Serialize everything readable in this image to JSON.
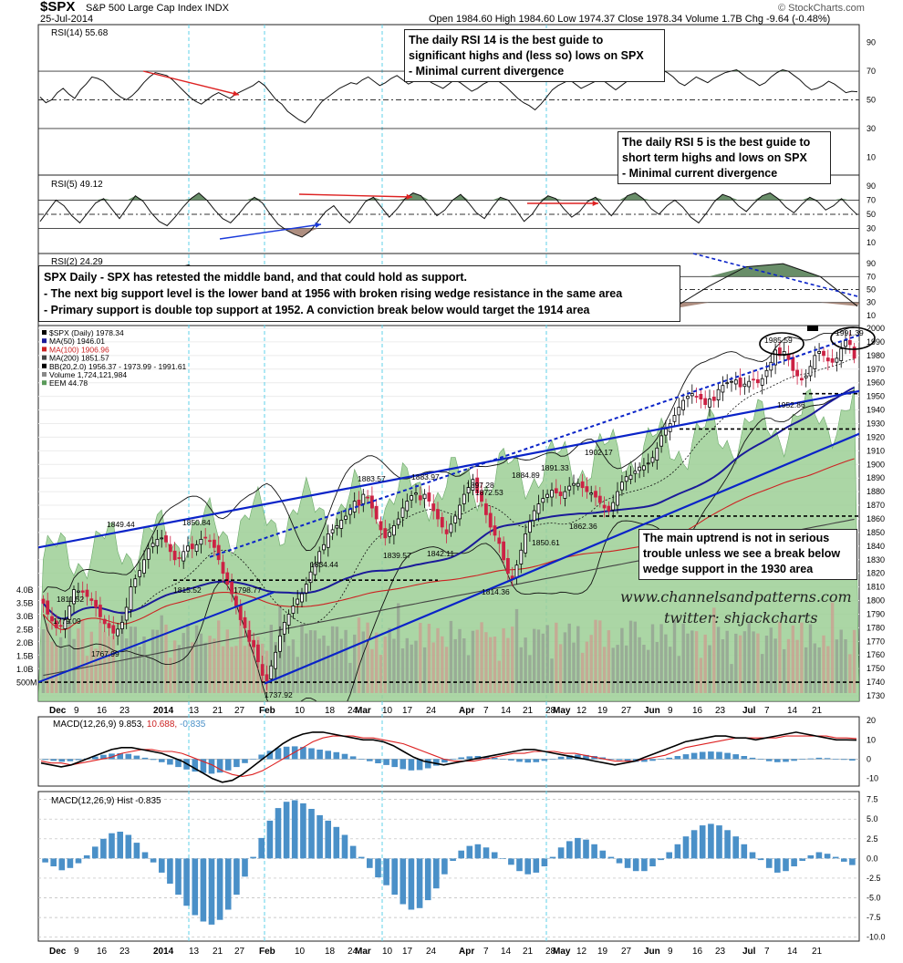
{
  "header": {
    "symbol": "$SPX",
    "name": "S&P 500 Large Cap Index INDX",
    "date": "25-Jul-2014",
    "quote": "Open 1984.60  High 1984.60  Low 1974.37  Close 1978.34  Volume 1.7B  Chg -9.64 (-0.48%)",
    "brand": "© StockCharts.com"
  },
  "notes": {
    "rsi14": [
      "The daily RSI 14 is the best guide to",
      "significant highs and (less so) lows on SPX",
      "- Minimal current  divergence"
    ],
    "rsi5": [
      "The daily RSI 5 is the best guide to",
      "short term highs and lows on SPX",
      "- Minimal current divergence"
    ],
    "main": [
      "SPX Daily - SPX has retested the middle band, and that could hold as support.",
      "- The next big support level is the lower band at 1956 with broken rising wedge resistance in the same area",
      "- Primary support is double top support at 1952. A conviction break below would target the 1914 area"
    ],
    "uptrend": [
      "The main uptrend is not in serious",
      "trouble unless we see a break below",
      "wedge support in the 1930 area"
    ]
  },
  "watermark": {
    "site": "www.channelsandpatterns.com",
    "twitter": "twitter: shjackcharts"
  },
  "legend": {
    "main": [
      "$SPX (Daily) 1978.34",
      "MA(50) 1946.01",
      "MA(100) 1906.96",
      "MA(200) 1851.57",
      "BB(20,2.0) 1956.37 - 1973.99 - 1991.61",
      "Volume 1,724,121,984",
      "EEM 44.78"
    ],
    "rsi14": "RSI(14) 55.68",
    "rsi5": "RSI(5) 49.12",
    "rsi2": "RSI(2) 24.29",
    "macd_name": "MACD(12,26,9)",
    "macd_values": [
      "9.853",
      "10.688",
      "-0.835"
    ],
    "hist": "MACD(12,26,9) Hist -0.835"
  },
  "colors": {
    "up_candle": "#000000",
    "down_candle": "#cc2244",
    "ma50": "#1a1a99",
    "ma100": "#cc2222",
    "ma200": "#444444",
    "eem_fill": "#9ccf95",
    "trendline": "#0a23c8",
    "macd_hist": "#4a90c8",
    "rsi_fill": "#4f7a4f",
    "signal_line": "#dd2222"
  },
  "chart_data": [
    {
      "type": "candlestick",
      "title": "$SPX (Daily)",
      "x_tick_labels": [
        "Dec",
        "9",
        "16",
        "23",
        "2014",
        "13",
        "21",
        "27",
        "Feb",
        "10",
        "18",
        "24",
        "Mar",
        "10",
        "17",
        "24",
        "Apr",
        "7",
        "14",
        "21",
        "28",
        "May",
        "12",
        "19",
        "27",
        "Jun",
        "9",
        "16",
        "23",
        "Jul",
        "7",
        "14",
        "21"
      ],
      "y_tick_labels": [
        "2000",
        "1990",
        "1980",
        "1970",
        "1960",
        "1950",
        "1940",
        "1930",
        "1920",
        "1910",
        "1900",
        "1890",
        "1880",
        "1870",
        "1860",
        "1850",
        "1840",
        "1830",
        "1820",
        "1810",
        "1800",
        "1790",
        "1780",
        "1770",
        "1760",
        "1750",
        "1740",
        "1730"
      ],
      "volume_axis_labels": [
        "4.0B",
        "3.5B",
        "3.0B",
        "2.5B",
        "2.0B",
        "1.5B",
        "1.0B",
        "500M"
      ],
      "ylim": [
        1726,
        2002
      ],
      "close": [
        1798,
        1790,
        1785,
        1780,
        1781,
        1786,
        1796,
        1808,
        1807,
        1806,
        1803,
        1800,
        1795,
        1788,
        1783,
        1780,
        1776,
        1779,
        1784,
        1795,
        1810,
        1816,
        1822,
        1830,
        1838,
        1842,
        1845,
        1846,
        1843,
        1836,
        1830,
        1831,
        1836,
        1840,
        1838,
        1841,
        1845,
        1846,
        1844,
        1839,
        1830,
        1820,
        1812,
        1805,
        1796,
        1786,
        1780,
        1770,
        1766,
        1755,
        1745,
        1741,
        1752,
        1762,
        1774,
        1784,
        1790,
        1796,
        1801,
        1805,
        1812,
        1821,
        1827,
        1836,
        1841,
        1849,
        1852,
        1855,
        1859,
        1862,
        1867,
        1873,
        1870,
        1878,
        1876,
        1868,
        1860,
        1852,
        1846,
        1850,
        1855,
        1860,
        1868,
        1873,
        1877,
        1879,
        1874,
        1878,
        1873,
        1866,
        1860,
        1854,
        1849,
        1856,
        1862,
        1870,
        1878,
        1883,
        1889,
        1879,
        1873,
        1863,
        1854,
        1848,
        1842,
        1830,
        1820,
        1816,
        1826,
        1837,
        1849,
        1858,
        1866,
        1871,
        1875,
        1878,
        1881,
        1879,
        1877,
        1880,
        1884,
        1886,
        1886,
        1883,
        1880,
        1879,
        1876,
        1872,
        1868,
        1866,
        1872,
        1880,
        1887,
        1891,
        1892,
        1895,
        1898,
        1899,
        1901,
        1905,
        1912,
        1921,
        1926,
        1930,
        1936,
        1942,
        1947,
        1950,
        1952,
        1950,
        1948,
        1944,
        1948,
        1947,
        1955,
        1958,
        1960,
        1961,
        1962,
        1957,
        1959,
        1961,
        1962,
        1960,
        1963,
        1969,
        1975,
        1984,
        1980,
        1983,
        1977,
        1969,
        1965,
        1962,
        1965,
        1972,
        1980,
        1983,
        1980,
        1976,
        1975,
        1978,
        1985,
        1991,
        1988,
        1978
      ],
      "moving_averages": {
        "MA50": 1946.01,
        "MA100": 1906.96,
        "MA200": 1851.57,
        "BB_lower": 1956.37,
        "BB_mid": 1973.99,
        "BB_upper": 1991.61
      },
      "annotated_values": [
        {
          "label": "1811.52"
        },
        {
          "label": "1779.09"
        },
        {
          "label": "1767.99"
        },
        {
          "label": "1849.44"
        },
        {
          "label": "1850.84"
        },
        {
          "label": "1815.52"
        },
        {
          "label": "1798.77"
        },
        {
          "label": "1737.92"
        },
        {
          "label": "1883.57"
        },
        {
          "label": "1834.44"
        },
        {
          "label": "1883.97"
        },
        {
          "label": "1839.57"
        },
        {
          "label": "1842.11"
        },
        {
          "label": "1897.28"
        },
        {
          "label": "1872.53"
        },
        {
          "label": "1884.89"
        },
        {
          "label": "1814.36"
        },
        {
          "label": "1850.61"
        },
        {
          "label": "1891.33"
        },
        {
          "label": "1902.17"
        },
        {
          "label": "1862.36"
        },
        {
          "label": "1985.59"
        },
        {
          "label": "1991.39"
        },
        {
          "label": "1952.86"
        }
      ],
      "support_levels": [
        1952,
        1926,
        1862,
        1815,
        1740
      ]
    },
    {
      "type": "line",
      "name": "RSI(14)",
      "value": 55.68,
      "y_tick_labels": [
        "90",
        "70",
        "50",
        "30",
        "10"
      ],
      "ylim": [
        0,
        100
      ],
      "values": [
        52,
        48,
        50,
        55,
        58,
        54,
        51,
        57,
        61,
        66,
        65,
        63,
        59,
        55,
        52,
        50,
        53,
        57,
        62,
        66,
        69,
        68,
        67,
        64,
        60,
        56,
        52,
        49,
        47,
        50,
        53,
        55,
        53,
        51,
        54,
        56,
        58,
        60,
        63,
        60,
        55,
        50,
        47,
        42,
        39,
        36,
        34,
        38,
        44,
        49,
        52,
        55,
        58,
        60,
        62,
        61,
        64,
        66,
        63,
        60,
        62,
        65,
        67,
        64,
        61,
        63,
        66,
        65,
        62,
        60,
        58,
        61,
        64,
        62,
        59,
        56,
        58,
        61,
        63,
        65,
        62,
        59,
        55,
        51,
        48,
        46,
        43,
        47,
        52,
        57,
        60,
        62,
        64,
        61,
        58,
        60,
        62,
        64,
        63,
        60,
        57,
        60,
        63,
        65,
        67,
        68,
        70,
        72,
        71,
        69,
        66,
        62,
        60,
        63,
        66,
        64,
        62,
        65,
        67,
        69,
        70,
        71,
        68,
        65,
        63,
        60,
        62,
        66,
        69,
        71,
        70,
        67,
        64,
        60,
        57,
        58,
        60,
        63,
        61,
        58,
        55,
        56,
        55.68
      ]
    },
    {
      "type": "line",
      "name": "RSI(5)",
      "value": 49.12,
      "y_tick_labels": [
        "90",
        "70",
        "50",
        "30",
        "10"
      ],
      "ylim": [
        0,
        100
      ],
      "values": [
        40,
        55,
        70,
        62,
        48,
        38,
        52,
        66,
        72,
        58,
        44,
        60,
        76,
        68,
        52,
        40,
        34,
        46,
        60,
        72,
        80,
        70,
        56,
        44,
        38,
        50,
        64,
        74,
        66,
        50,
        36,
        28,
        22,
        18,
        26,
        40,
        54,
        62,
        48,
        38,
        52,
        68,
        74,
        60,
        46,
        58,
        72,
        80,
        76,
        62,
        48,
        56,
        70,
        78,
        66,
        52,
        44,
        60,
        74,
        70,
        56,
        40,
        50,
        66,
        76,
        72,
        58,
        46,
        54,
        68,
        74,
        60,
        48,
        62,
        76,
        80,
        72,
        58,
        50,
        62,
        70,
        60,
        46,
        38,
        52,
        68,
        78,
        74,
        62,
        54,
        66,
        76,
        80,
        72,
        60,
        52,
        64,
        74,
        68,
        56,
        62,
        72,
        60,
        49.12
      ]
    },
    {
      "type": "line",
      "name": "RSI(2)",
      "value": 24.29,
      "y_tick_labels": [
        "90",
        "70",
        "50",
        "30",
        "10"
      ],
      "ylim": [
        0,
        100
      ],
      "values": [
        80,
        60,
        40,
        75,
        88,
        55,
        25,
        40,
        80,
        70,
        35,
        15,
        45,
        70,
        85,
        60,
        30,
        20,
        55,
        85,
        90,
        70,
        24.29
      ]
    },
    {
      "type": "line",
      "name": "MACD(12,26,9)",
      "y_tick_labels": [
        "20",
        "10",
        "0",
        "-10"
      ],
      "ylim": [
        -14,
        22
      ],
      "macd": [
        -2,
        -3,
        -4,
        -3,
        -1,
        1,
        3,
        5,
        6,
        6,
        5,
        4,
        3,
        1,
        -1,
        -4,
        -7,
        -10,
        -12,
        -11,
        -8,
        -4,
        0,
        4,
        8,
        11,
        13,
        14,
        14,
        13,
        12,
        11,
        10,
        10,
        9,
        7,
        4,
        1,
        -1,
        -2,
        -3,
        -2,
        -1,
        0,
        1,
        2,
        3,
        4,
        5,
        5,
        4,
        3,
        2,
        1,
        0,
        -1,
        -2,
        -3,
        -2,
        -1,
        1,
        3,
        5,
        7,
        9,
        10,
        11,
        12,
        12,
        11,
        11,
        10,
        11,
        12,
        13,
        14,
        13,
        12,
        11,
        10,
        10,
        9.853
      ],
      "signal": [
        -1,
        -2,
        -2,
        -3,
        -2,
        -1,
        0,
        1,
        3,
        4,
        5,
        5,
        4,
        4,
        3,
        1,
        -1,
        -3,
        -6,
        -8,
        -9,
        -8,
        -6,
        -3,
        0,
        3,
        6,
        9,
        11,
        12,
        12,
        12,
        11,
        11,
        10,
        9,
        8,
        6,
        4,
        2,
        0,
        -1,
        -1,
        -1,
        0,
        1,
        2,
        3,
        3,
        4,
        4,
        4,
        3,
        3,
        2,
        1,
        0,
        -1,
        -1,
        -1,
        0,
        1,
        2,
        4,
        6,
        7,
        8,
        9,
        10,
        11,
        11,
        11,
        11,
        11,
        12,
        12,
        12,
        12,
        12,
        11,
        11,
        10.688
      ]
    },
    {
      "type": "bar",
      "name": "MACD Histogram",
      "value": -0.835,
      "y_tick_labels": [
        "7.5",
        "5.0",
        "2.5",
        "0.0",
        "-2.5",
        "-5.0",
        "-7.5",
        "-10.0"
      ],
      "ylim": [
        -10.5,
        8.5
      ],
      "values": [
        -0.5,
        -1,
        -1.5,
        -1.2,
        -0.6,
        0.4,
        1.5,
        2.5,
        3.2,
        3.4,
        3.0,
        2.0,
        0.8,
        -0.5,
        -1.8,
        -3.2,
        -4.6,
        -6.0,
        -7.2,
        -8.0,
        -8.4,
        -7.8,
        -6.5,
        -4.6,
        -2.3,
        0.2,
        2.6,
        4.8,
        6.4,
        7.2,
        7.4,
        7.0,
        6.3,
        5.5,
        4.8,
        4.0,
        3.0,
        1.6,
        0.2,
        -1.2,
        -2.4,
        -3.4,
        -4.6,
        -5.8,
        -6.5,
        -6.3,
        -5.3,
        -3.8,
        -2.0,
        -0.3,
        1.0,
        1.6,
        1.8,
        1.4,
        0.8,
        0.0,
        -0.8,
        -1.6,
        -2.0,
        -1.8,
        -1.0,
        0.2,
        1.4,
        2.2,
        2.6,
        2.4,
        1.8,
        1.0,
        0.2,
        -0.6,
        -1.2,
        -1.6,
        -1.6,
        -1.0,
        -0.2,
        0.8,
        1.8,
        2.8,
        3.6,
        4.2,
        4.4,
        4.2,
        3.6,
        2.8,
        1.8,
        0.8,
        -0.2,
        -1.2,
        -1.8,
        -1.6,
        -1.0,
        -0.3,
        0.4,
        0.8,
        0.6,
        0.2,
        -0.4,
        -0.835
      ]
    }
  ]
}
